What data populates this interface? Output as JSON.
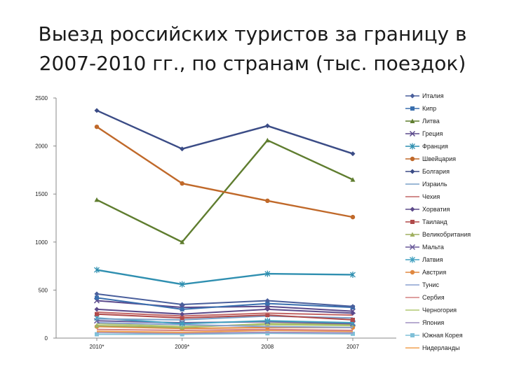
{
  "page": {
    "title": "Выезд российских туристов за границу в 2007-2010 гг., по странам (тыс. поездок)"
  },
  "chart_data": {
    "type": "line",
    "title": "Выезд российских туристов за границу в 2007-2010 гг., по странам (тыс. поездок)",
    "xlabel": "",
    "ylabel": "",
    "categories": [
      "2010*",
      "2009*",
      "2008",
      "2007"
    ],
    "ylim": [
      0,
      2500
    ],
    "yticks": [
      "0",
      "500",
      "1000",
      "1500",
      "2000",
      "2500"
    ],
    "grid": false,
    "legend_position": "right",
    "series": [
      {
        "name": "Италия",
        "color": "#4a5f9c",
        "marker": "diamond",
        "values": [
          460,
          350,
          390,
          330
        ]
      },
      {
        "name": "Кипр",
        "color": "#3a6fae",
        "marker": "square",
        "values": [
          420,
          300,
          360,
          320
        ]
      },
      {
        "name": "Литва",
        "color": "#5f7d2f",
        "marker": "triangle",
        "values": [
          1440,
          1000,
          2060,
          1650
        ]
      },
      {
        "name": "Греция",
        "color": "#5b4a8c",
        "marker": "x",
        "values": [
          390,
          320,
          330,
          280
        ]
      },
      {
        "name": "Франция",
        "color": "#2f8fb0",
        "marker": "star",
        "values": [
          710,
          560,
          670,
          660
        ]
      },
      {
        "name": "Швейцария",
        "color": "#c0692a",
        "marker": "circle",
        "values": [
          2200,
          1610,
          1430,
          1260
        ]
      },
      {
        "name": "Болгария",
        "color": "#3b4c86",
        "marker": "diamond",
        "values": [
          2370,
          1970,
          2210,
          1920
        ]
      },
      {
        "name": "Израиль",
        "color": "#7aa0c8",
        "marker": "none",
        "values": [
          200,
          190,
          230,
          210
        ]
      },
      {
        "name": "Чехия",
        "color": "#c26666",
        "marker": "none",
        "values": [
          270,
          230,
          260,
          240
        ]
      },
      {
        "name": "Хорватия",
        "color": "#5c4a8a",
        "marker": "diamond",
        "values": [
          300,
          250,
          300,
          260
        ]
      },
      {
        "name": "Таиланд",
        "color": "#b04a4a",
        "marker": "square",
        "values": [
          250,
          210,
          240,
          190
        ]
      },
      {
        "name": "Великобритания",
        "color": "#a0b060",
        "marker": "triangle",
        "values": [
          130,
          110,
          150,
          140
        ]
      },
      {
        "name": "Мальта",
        "color": "#6a5a9a",
        "marker": "x",
        "values": [
          180,
          160,
          170,
          150
        ]
      },
      {
        "name": "Латвия",
        "color": "#40a0c0",
        "marker": "star",
        "values": [
          210,
          150,
          180,
          160
        ]
      },
      {
        "name": "Австрия",
        "color": "#e08840",
        "marker": "circle",
        "values": [
          120,
          100,
          110,
          110
        ]
      },
      {
        "name": "Тунис",
        "color": "#8aa0d0",
        "marker": "none",
        "values": [
          160,
          140,
          120,
          110
        ]
      },
      {
        "name": "Сербия",
        "color": "#d48080",
        "marker": "none",
        "values": [
          90,
          80,
          90,
          80
        ]
      },
      {
        "name": "Черногория",
        "color": "#b0c870",
        "marker": "none",
        "values": [
          150,
          120,
          140,
          130
        ]
      },
      {
        "name": "Япония",
        "color": "#a090c0",
        "marker": "none",
        "values": [
          60,
          50,
          60,
          55
        ]
      },
      {
        "name": "Южная Корея",
        "color": "#80c0d8",
        "marker": "square",
        "values": [
          40,
          40,
          50,
          45
        ]
      },
      {
        "name": "Нидерланды",
        "color": "#f0a050",
        "marker": "none",
        "values": [
          70,
          60,
          80,
          70
        ]
      }
    ]
  }
}
